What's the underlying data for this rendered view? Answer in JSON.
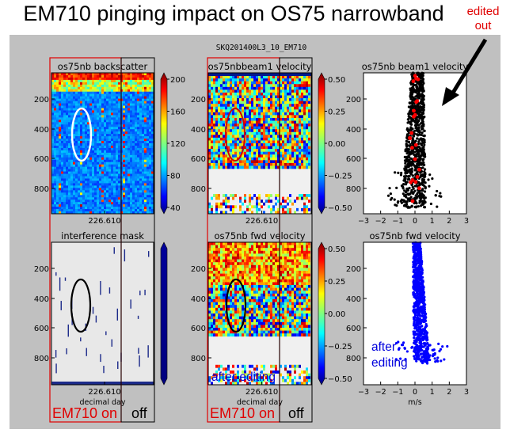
{
  "header": {
    "title": "EM710 pinging impact on OS75 narrowband",
    "edited_note": "edited\nout",
    "run_id": "SKQ201400L3_10_EM710"
  },
  "chart_data": [
    {
      "type": "heatmap",
      "title": "os75nb backscatter",
      "y_ticks": [
        200,
        400,
        600,
        800
      ],
      "x_tick": "226.610",
      "colorbar_ticks": [
        200,
        160,
        120,
        80,
        40
      ],
      "ylim": [
        1000,
        0
      ]
    },
    {
      "type": "heatmap",
      "title": "os75nbbeam1 velocity",
      "y_ticks": [
        200,
        400,
        600,
        800
      ],
      "x_tick": "226.610",
      "colorbar_ticks": [
        "0.50",
        "0.25",
        "0.00",
        "−0.25",
        "−0.50"
      ],
      "ylim": [
        1000,
        0
      ]
    },
    {
      "type": "scatter",
      "title": "os75nb beam1 velocity",
      "y_ticks": [
        200,
        400,
        600,
        800
      ],
      "x_ticks": [
        "−3",
        "−2",
        "−1",
        "0",
        "1",
        "2",
        "3"
      ],
      "xlim": [
        -3,
        3
      ],
      "ylim": [
        1000,
        0
      ]
    },
    {
      "type": "heatmap",
      "title": "interference mask",
      "y_ticks": [
        200,
        400,
        600,
        800
      ],
      "x_tick": "226.610",
      "xlabel": "decimal day",
      "ylim": [
        1000,
        0
      ]
    },
    {
      "type": "heatmap",
      "title": "os75nb fwd velocity",
      "y_ticks": [
        200,
        400,
        600,
        800
      ],
      "x_tick": "226.610",
      "xlabel": "decimal day",
      "colorbar_ticks": [
        "0.50",
        "0.25",
        "0.00",
        "−0.25",
        "−0.50"
      ],
      "ylim": [
        1000,
        0
      ]
    },
    {
      "type": "scatter",
      "title": "os75nb fwd velocity",
      "y_ticks": [
        200,
        400,
        600,
        800
      ],
      "x_ticks": [
        "−3",
        "−2",
        "−1",
        "0",
        "1",
        "2",
        "3"
      ],
      "xlabel": "m/s",
      "xlim": [
        -3,
        3
      ],
      "ylim": [
        1000,
        0
      ]
    }
  ],
  "annotations": {
    "em710_on": "EM710 on",
    "off": "off",
    "after_editing": "after editing",
    "after_editing_split": [
      "after",
      "editing"
    ]
  },
  "colors": {
    "figure_bg": "#c0c0c0",
    "red": "#e00000",
    "blue_points": "#0000ff",
    "text_blue": "#0000dd"
  }
}
